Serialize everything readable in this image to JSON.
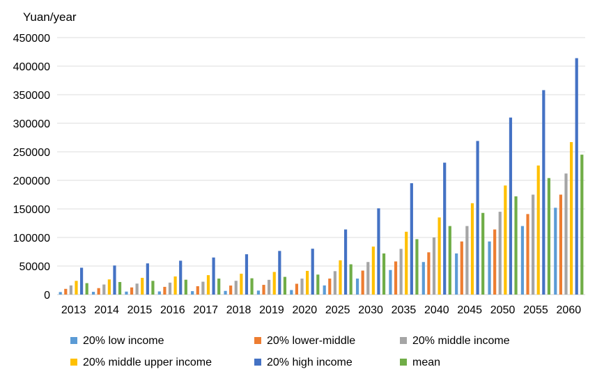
{
  "chart_data": {
    "type": "bar",
    "ylabel": "Yuan/year",
    "ylim": [
      0,
      450000
    ],
    "yticks": [
      0,
      50000,
      100000,
      150000,
      200000,
      250000,
      300000,
      350000,
      400000,
      450000
    ],
    "ytick_labels": [
      "0",
      "50000",
      "100000",
      "150000",
      "200000",
      "250000",
      "300000",
      "350000",
      "400000",
      "450000"
    ],
    "grid": true,
    "legend_position": "bottom",
    "categories": [
      "2013",
      "2014",
      "2015",
      "2016",
      "2017",
      "2018",
      "2019",
      "2020",
      "2025",
      "2030",
      "2035",
      "2040",
      "2045",
      "2050",
      "2055",
      "2060"
    ],
    "series": [
      {
        "name": "20% low income",
        "color": "#5B9BD5",
        "values": [
          4400,
          4800,
          5200,
          5500,
          6000,
          6400,
          7000,
          7900,
          16000,
          28000,
          43000,
          57000,
          72000,
          93000,
          120000,
          152000
        ]
      },
      {
        "name": "20% lower-middle",
        "color": "#ED7D31",
        "values": [
          10000,
          11300,
          12500,
          13500,
          14600,
          15800,
          17000,
          18900,
          28000,
          42000,
          58000,
          74000,
          93000,
          114000,
          141000,
          175000
        ]
      },
      {
        "name": "20% middle income",
        "color": "#A5A5A5",
        "values": [
          16000,
          17600,
          19200,
          20900,
          22500,
          24100,
          25800,
          28000,
          41000,
          57000,
          80000,
          100000,
          120000,
          145000,
          175000,
          212000
        ]
      },
      {
        "name": "20% middle upper income",
        "color": "#FFC000",
        "values": [
          24000,
          26500,
          29300,
          31700,
          34000,
          36500,
          39600,
          41500,
          60000,
          84000,
          110000,
          135000,
          160000,
          191000,
          226000,
          267000
        ]
      },
      {
        "name": "20% high income",
        "color": "#4472C4",
        "values": [
          47000,
          50900,
          54600,
          59300,
          64900,
          70600,
          76400,
          80300,
          114000,
          151000,
          195000,
          231000,
          269000,
          310000,
          358000,
          414000
        ]
      },
      {
        "name": "mean",
        "color": "#70AD47",
        "values": [
          20000,
          22000,
          24000,
          26000,
          28000,
          28500,
          31000,
          35000,
          53000,
          72000,
          97000,
          120000,
          143000,
          172000,
          204000,
          245000
        ]
      }
    ]
  }
}
